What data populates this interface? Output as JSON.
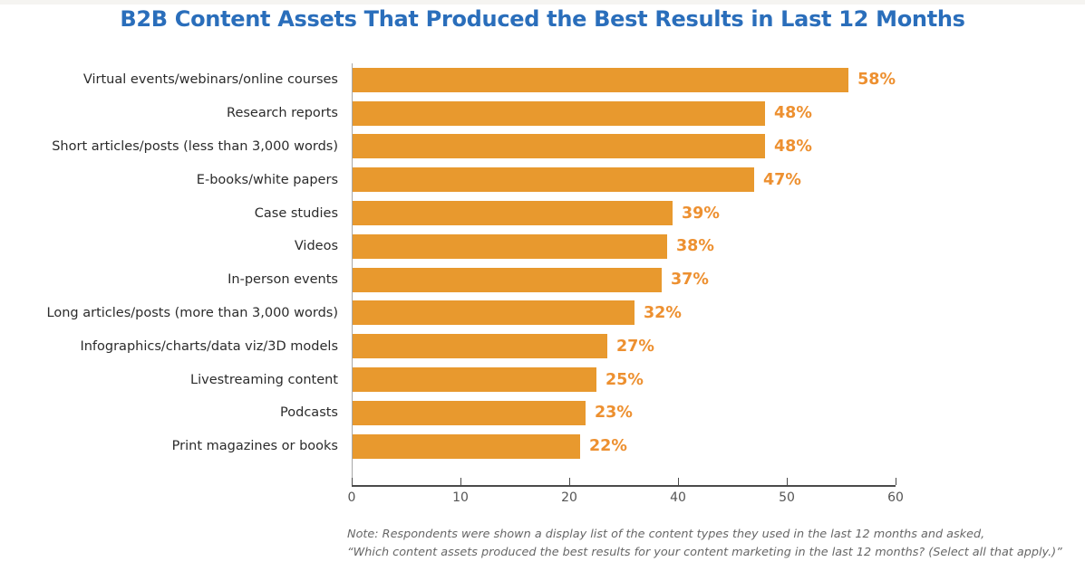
{
  "title": {
    "text": "B2B Content Assets That Produced the Best Results in Last 12 Months",
    "color": "#2a6ebb"
  },
  "chart_data": {
    "type": "bar",
    "orientation": "horizontal",
    "title": "B2B Content Assets That Produced the Best Results in Last 12 Months",
    "categories": [
      "Virtual events/webinars/online courses",
      "Research reports",
      "Short articles/posts (less than 3,000 words)",
      "E-books/white papers",
      "Case studies",
      "Videos",
      "In-person events",
      "Long articles/posts (more than 3,000 words)",
      "Infographics/charts/data viz/3D models",
      "Livestreaming content",
      "Podcasts",
      "Print magazines or books"
    ],
    "values": [
      58,
      48,
      48,
      47,
      39,
      38,
      37,
      32,
      27,
      25,
      23,
      22
    ],
    "value_labels": [
      "58%",
      "48%",
      "48%",
      "47%",
      "39%",
      "38%",
      "37%",
      "32%",
      "27%",
      "25%",
      "23%",
      "22%"
    ],
    "x_axis": {
      "tick_labels": [
        "0",
        "10",
        "20",
        "40",
        "50",
        "60"
      ],
      "range": [
        0,
        60
      ]
    },
    "grid": false,
    "legend": "none",
    "bar_color": "#e8992e",
    "value_label_color": "#ed9030",
    "category_label_color": "#2b2b2b",
    "axis_color": "#4a4a4a"
  },
  "note": {
    "lines": [
      "Note: Respondents were shown a display list of the content types they used in the last 12 months and asked,",
      "“Which content assets produced the best results for your content marketing in the last 12 months? (Select all that apply.)”"
    ]
  }
}
